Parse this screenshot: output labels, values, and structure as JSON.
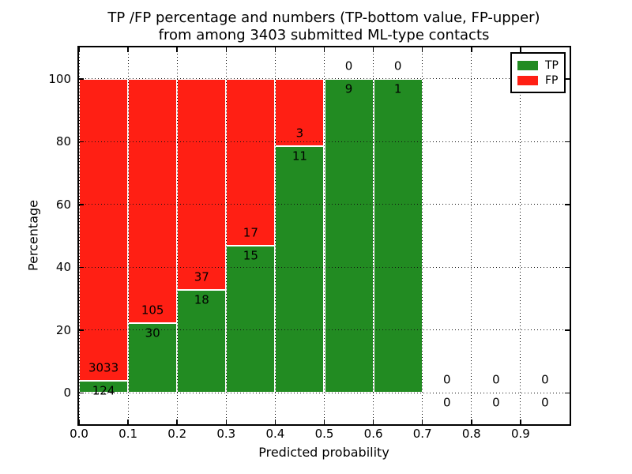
{
  "title": {
    "line1": "TP /FP percentage and numbers (TP-bottom value, FP-upper)",
    "line2": "from among 3403 submitted ML-type contacts"
  },
  "legend": {
    "items": [
      {
        "label": "TP",
        "color": "#228b22"
      },
      {
        "label": "FP",
        "color": "#ff1f14"
      }
    ]
  },
  "chart_data": {
    "type": "bar",
    "stacked": true,
    "title": "TP /FP percentage and numbers (TP-bottom value, FP-upper) from among 3403 submitted ML-type contacts",
    "xlabel": "Predicted probability",
    "ylabel": "Percentage",
    "xlim": [
      0.0,
      1.0
    ],
    "ylim": [
      -10,
      110
    ],
    "x_tick_labels": [
      "0.0",
      "0.1",
      "0.2",
      "0.3",
      "0.4",
      "0.5",
      "0.6",
      "0.7",
      "0.8",
      "0.9"
    ],
    "y_tick_values": [
      0,
      20,
      40,
      60,
      80,
      100
    ],
    "grid": true,
    "legend_position": "upper right",
    "bin_width": 0.1,
    "total_contacts": 3403,
    "categories": [
      "0.0-0.1",
      "0.1-0.2",
      "0.2-0.3",
      "0.3-0.4",
      "0.4-0.5",
      "0.5-0.6",
      "0.6-0.7",
      "0.7-0.8",
      "0.8-0.9",
      "0.9-1.0"
    ],
    "series": [
      {
        "name": "TP",
        "color": "#228b22",
        "values": [
          124,
          30,
          18,
          15,
          11,
          9,
          1,
          0,
          0,
          0
        ]
      },
      {
        "name": "FP",
        "color": "#ff1f14",
        "values": [
          3033,
          105,
          37,
          17,
          3,
          0,
          0,
          0,
          0,
          0
        ]
      }
    ],
    "bar_unit": "percent_of_bin_total"
  }
}
